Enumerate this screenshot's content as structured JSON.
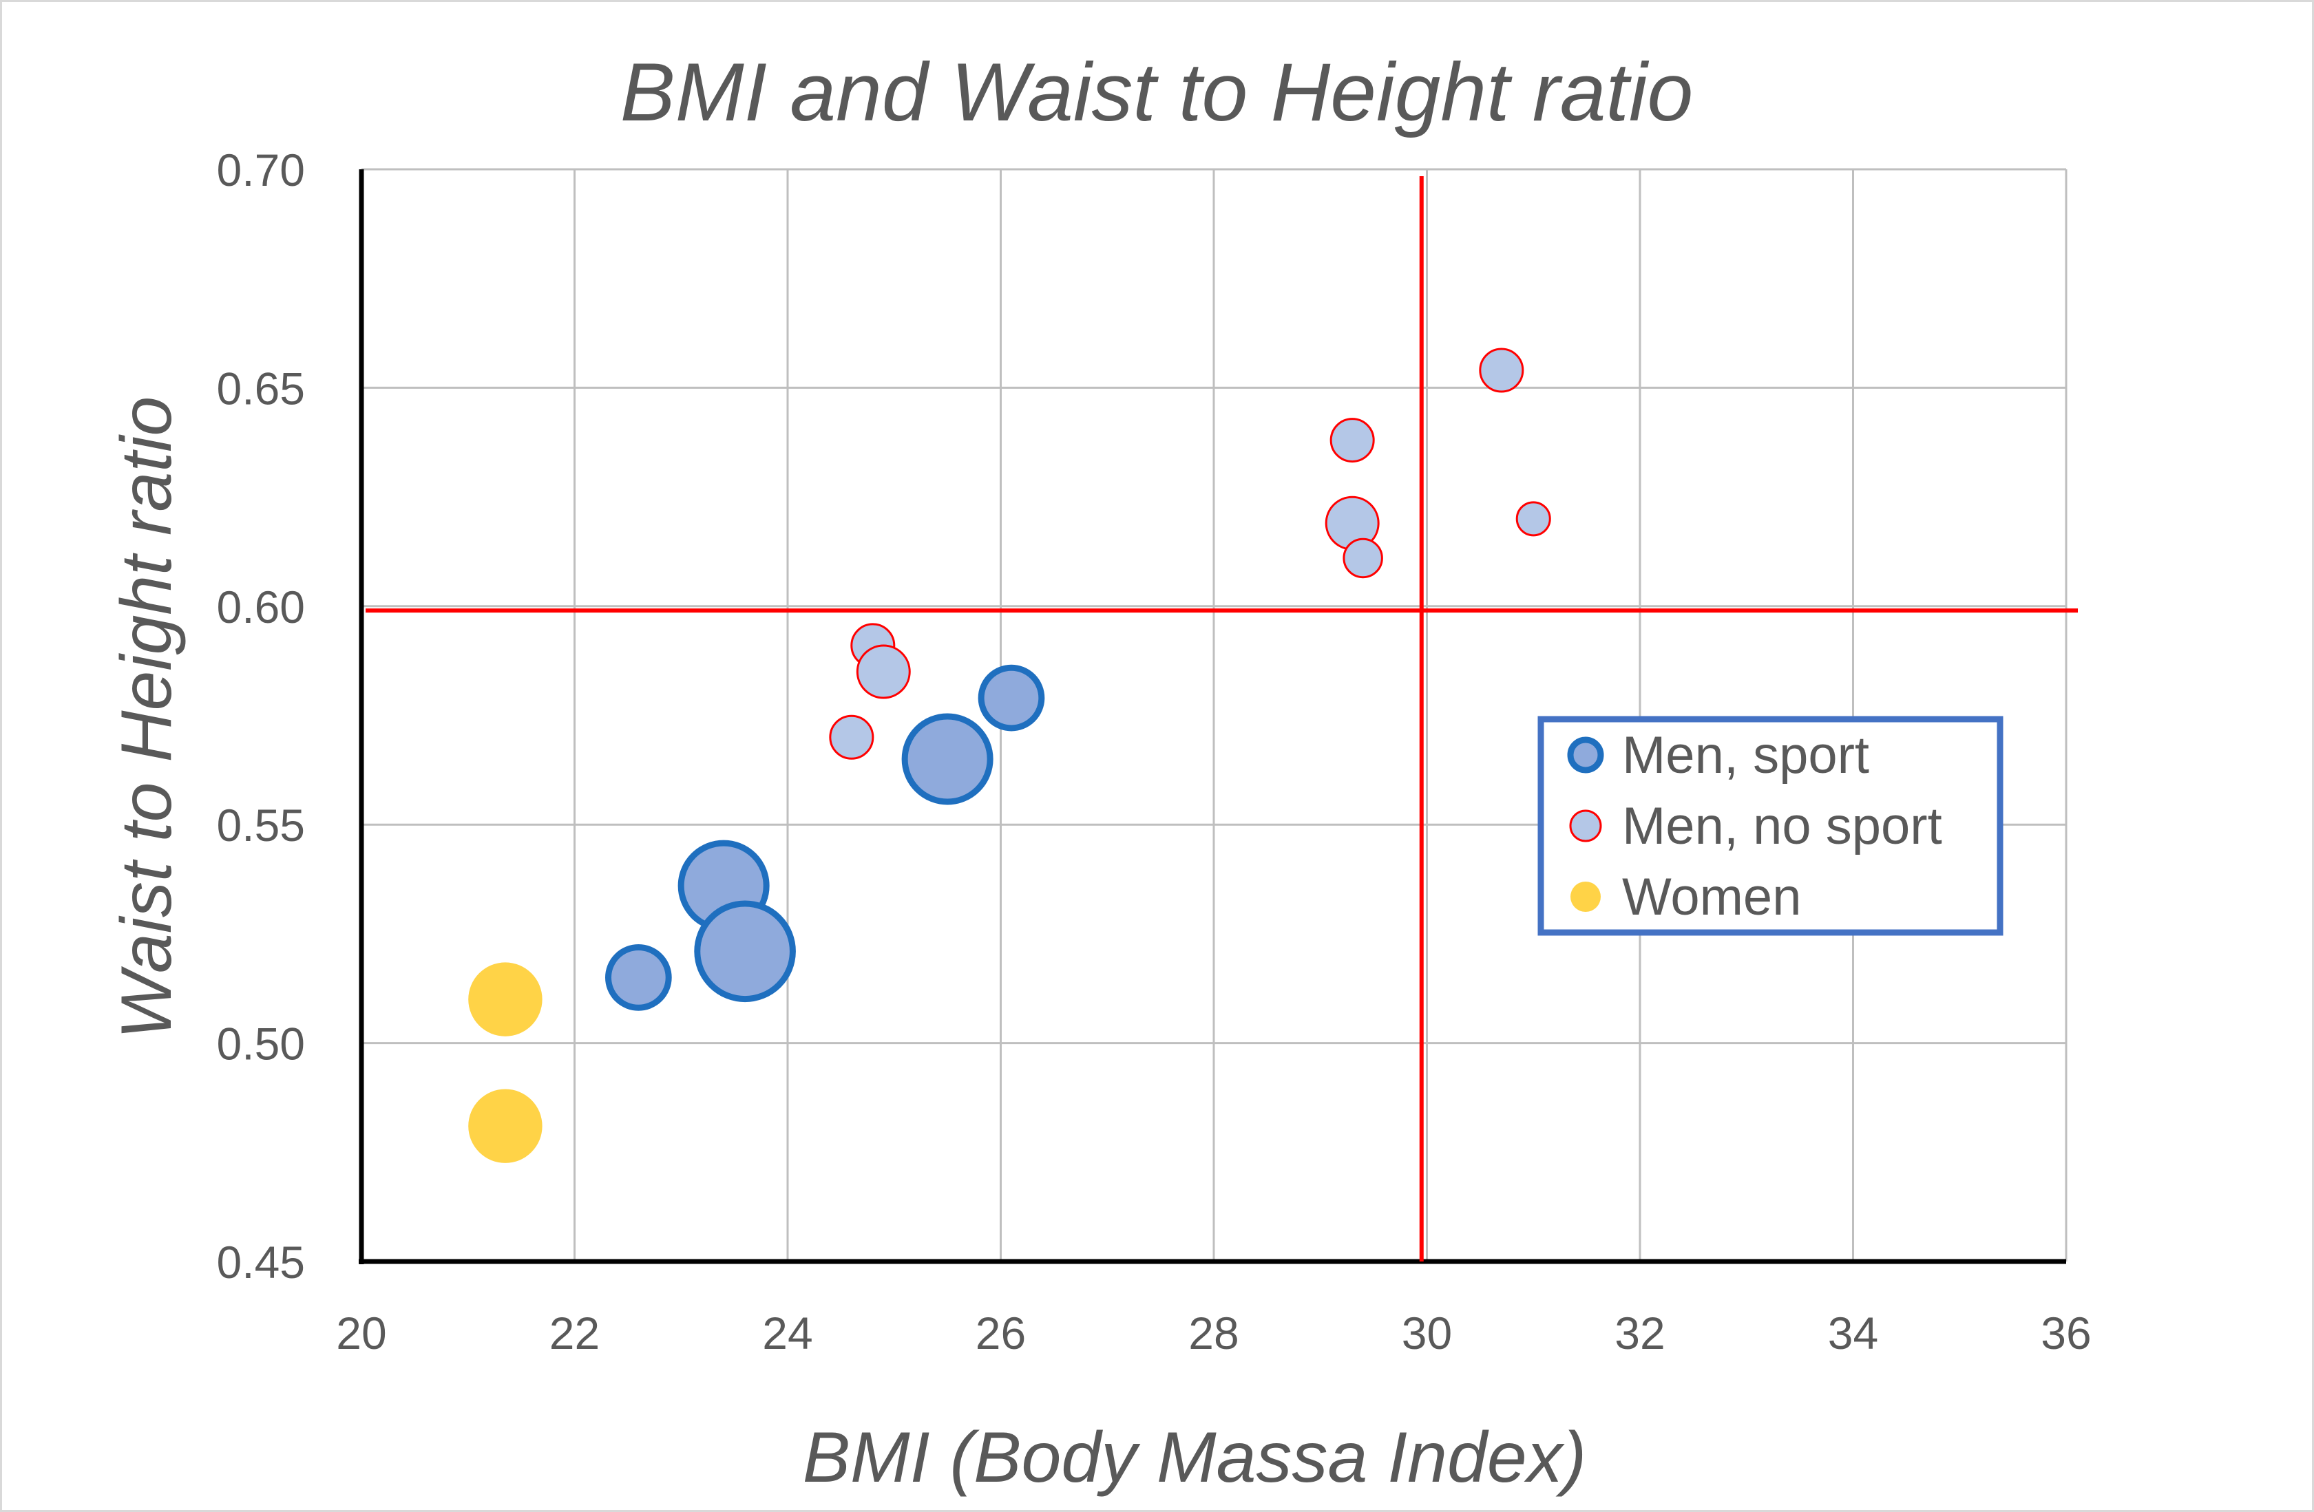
{
  "chart_data": {
    "type": "bubble",
    "title": "BMI and Waist to Height ratio",
    "xlabel": "BMI (Body Massa Index)",
    "ylabel": "Waist to Height ratio",
    "xlim": [
      20,
      36
    ],
    "ylim": [
      0.45,
      0.7
    ],
    "xticks": [
      20,
      22,
      24,
      26,
      28,
      30,
      32,
      34,
      36
    ],
    "xtick_labels": [
      "20",
      "22",
      "24",
      "26",
      "28",
      "30",
      "32",
      "34",
      "36"
    ],
    "yticks": [
      0.45,
      0.5,
      0.55,
      0.6,
      0.65,
      0.7
    ],
    "ytick_labels": [
      "0.45",
      "0.50",
      "0.55",
      "0.60",
      "0.65",
      "0.70"
    ],
    "grid": true,
    "legend_position": "right",
    "reference_lines": [
      {
        "orientation": "vertical",
        "value": 29.95,
        "color": "#ff0000"
      },
      {
        "orientation": "horizontal",
        "value": 0.599,
        "color": "#ff0000"
      }
    ],
    "series": [
      {
        "name": "Men, sport",
        "fill": "#8faadc",
        "stroke": "#1f6fbf",
        "points": [
          {
            "x": 22.6,
            "y": 0.515,
            "size": 2
          },
          {
            "x": 23.4,
            "y": 0.536,
            "size": 4
          },
          {
            "x": 23.6,
            "y": 0.521,
            "size": 5
          },
          {
            "x": 25.5,
            "y": 0.565,
            "size": 4
          },
          {
            "x": 26.1,
            "y": 0.579,
            "size": 2
          }
        ]
      },
      {
        "name": "Men, no sport",
        "fill": "#b4c7e7",
        "stroke": "#ff0000",
        "points": [
          {
            "x": 24.6,
            "y": 0.57,
            "size": 1
          },
          {
            "x": 24.8,
            "y": 0.591,
            "size": 1
          },
          {
            "x": 24.9,
            "y": 0.585,
            "size": 1.5
          },
          {
            "x": 29.3,
            "y": 0.638,
            "size": 1
          },
          {
            "x": 29.3,
            "y": 0.619,
            "size": 1.5
          },
          {
            "x": 29.4,
            "y": 0.611,
            "size": 0.8
          },
          {
            "x": 30.7,
            "y": 0.654,
            "size": 1
          },
          {
            "x": 31.0,
            "y": 0.62,
            "size": 0.6
          }
        ]
      },
      {
        "name": "Women",
        "fill": "#ffd347",
        "stroke": "none",
        "points": [
          {
            "x": 21.35,
            "y": 0.51,
            "size": 3
          },
          {
            "x": 21.35,
            "y": 0.481,
            "size": 3
          }
        ]
      }
    ]
  }
}
